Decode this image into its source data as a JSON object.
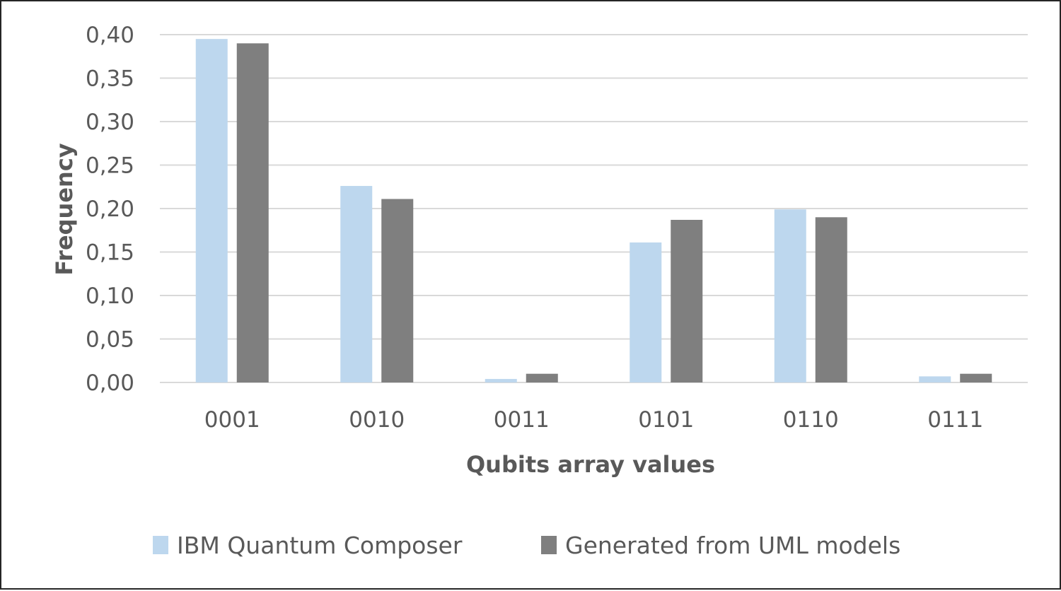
{
  "chart_data": {
    "type": "bar",
    "xlabel": "Qubits array values",
    "ylabel": "Frequency",
    "categories": [
      "0001",
      "0010",
      "0011",
      "0101",
      "0110",
      "0111"
    ],
    "series": [
      {
        "name": "IBM Quantum Composer",
        "color": "#bdd7ee",
        "values": [
          0.395,
          0.226,
          0.004,
          0.161,
          0.199,
          0.007
        ]
      },
      {
        "name": "Generated from UML models",
        "color": "#7f7f7f",
        "values": [
          0.39,
          0.211,
          0.01,
          0.187,
          0.19,
          0.01
        ]
      }
    ],
    "ylim": [
      0,
      0.4
    ],
    "yticks": [
      "0,00",
      "0,05",
      "0,10",
      "0,15",
      "0,20",
      "0,25",
      "0,30",
      "0,35",
      "0,40"
    ],
    "grid": true,
    "legend_position": "bottom"
  }
}
